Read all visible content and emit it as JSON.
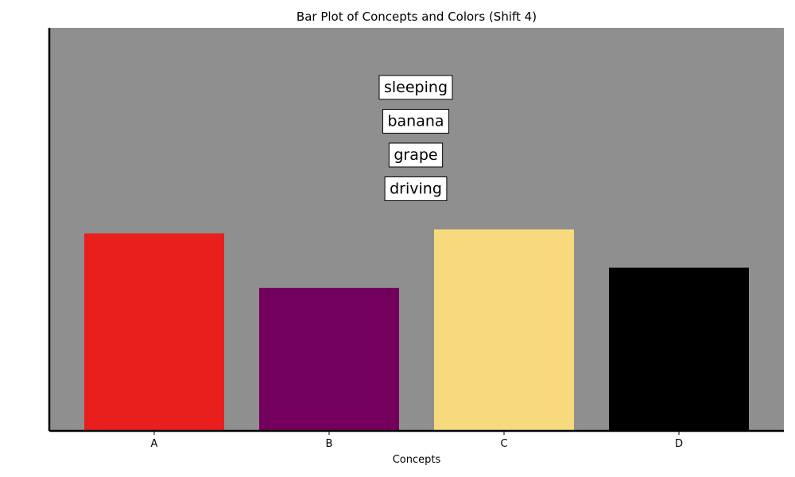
{
  "chart_data": {
    "type": "bar",
    "title": "Bar Plot of Concepts and Colors (Shift 4)",
    "xlabel": "Concepts",
    "ylabel": "",
    "categories": [
      "A",
      "B",
      "C",
      "D"
    ],
    "values": [
      4.9,
      3.55,
      5.0,
      4.05
    ],
    "colors": [
      "#e81f1d",
      "#72005c",
      "#f7d97e",
      "#000000"
    ],
    "ylim": [
      0,
      10
    ],
    "y_ticks_visible": false,
    "grid": false,
    "background": "#8f8f8f",
    "annotations": [
      "sleeping",
      "banana",
      "grape",
      "driving"
    ]
  }
}
